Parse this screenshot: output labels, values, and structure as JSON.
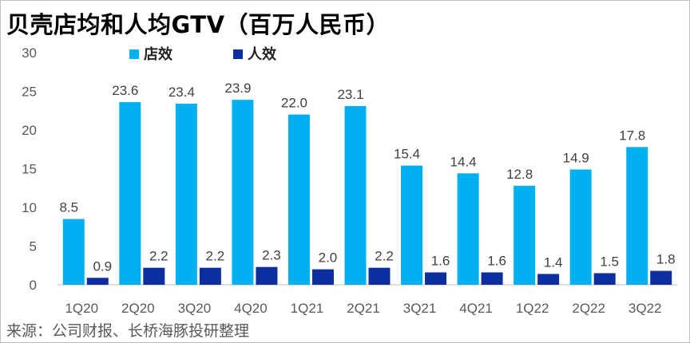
{
  "source_text": "来源：公司财报、长桥海豚投研整理",
  "chart_data": {
    "type": "bar",
    "title": "贝壳店均和人均GTV（百万人民币）",
    "categories": [
      "1Q20",
      "2Q20",
      "3Q20",
      "4Q20",
      "1Q21",
      "2Q21",
      "3Q21",
      "4Q21",
      "1Q22",
      "2Q22",
      "3Q22"
    ],
    "series": [
      {
        "name": "店效",
        "color": "#00b0f0",
        "values": [
          8.5,
          23.6,
          23.4,
          23.9,
          22.0,
          23.1,
          15.4,
          14.4,
          12.8,
          14.9,
          17.8
        ]
      },
      {
        "name": "人效",
        "color": "#0d2e9e",
        "values": [
          0.9,
          2.2,
          2.2,
          2.3,
          2.0,
          2.2,
          1.6,
          1.6,
          1.4,
          1.5,
          1.8
        ]
      }
    ],
    "ylim": [
      0,
      30
    ],
    "yticks": [
      0,
      5,
      10,
      15,
      20,
      25,
      30
    ],
    "legend": "top-left",
    "grid": false
  }
}
